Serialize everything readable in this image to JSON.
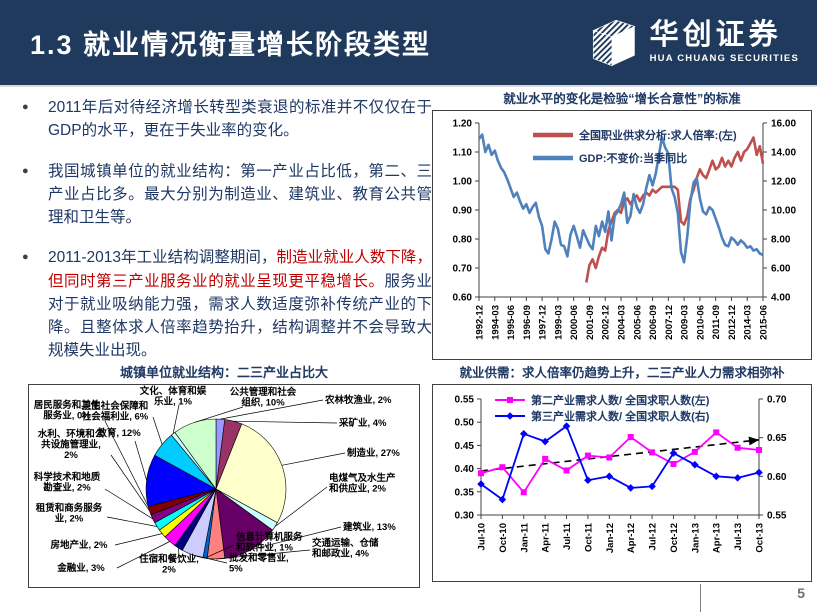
{
  "header": {
    "title": "1.3 就业情况衡量增长阶段类型",
    "logo_cn": "华创证券",
    "logo_en": "HUA CHUANG SECURITIES"
  },
  "bullets": {
    "items": [
      {
        "text": "2011年后对待经济增长转型类衰退的标准并不仅仅在于GDP的水平，更在于失业率的变化。"
      },
      {
        "text": "我国城镇单位的就业结构：第一产业占比低，第二、三产业占比多。最大分别为制造业、建筑业、教育公共管理和卫生等。"
      },
      {
        "pre": "2011-2013年工业结构调整期间，",
        "highlight": "制造业就业人数下降，但同时第三产业服务业的就业呈现更平稳增长。",
        "post": "服务业对于就业吸纳能力强，需求人数适度弥补传统产业的下降。且整体求人倍率趋势抬升，结构调整并不会导致大规模失业出现。"
      }
    ]
  },
  "footer": {
    "page_number": "5"
  },
  "chart_data": [
    {
      "type": "line",
      "title": "就业水平的变化是检验“增长合意性”的标准",
      "x_start": "1992-12",
      "x_freq": "quarterly",
      "x_tick_labels": [
        "1992-12",
        "1994-03",
        "1995-06",
        "1996-09",
        "1997-12",
        "1999-03",
        "2000-06",
        "2001-09",
        "2002-12",
        "2004-03",
        "2005-06",
        "2006-09",
        "2007-12",
        "2009-03",
        "2010-06",
        "2011-09",
        "2012-12",
        "2014-03",
        "2015-06"
      ],
      "x_tick_every": 5,
      "left_axis": {
        "min": 0.6,
        "max": 1.2,
        "step": 0.1,
        "decimals": 2
      },
      "right_axis": {
        "min": 4.0,
        "max": 16.0,
        "step": 2.0,
        "decimals": 2
      },
      "legend_position": "top-inside",
      "grid": false,
      "series": [
        {
          "name": "全国职业供求分析:求人倍率:(左)",
          "color": "#C0504D",
          "axis": "left",
          "values": [
            null,
            null,
            null,
            null,
            null,
            null,
            null,
            null,
            null,
            null,
            null,
            null,
            null,
            null,
            null,
            null,
            null,
            null,
            null,
            null,
            null,
            null,
            null,
            null,
            null,
            null,
            null,
            null,
            null,
            null,
            null,
            null,
            null,
            null,
            0.65,
            0.71,
            0.73,
            0.7,
            0.74,
            0.77,
            0.76,
            0.83,
            0.86,
            0.89,
            0.9,
            0.89,
            0.93,
            0.94,
            0.92,
            0.94,
            0.95,
            0.93,
            0.95,
            0.96,
            0.95,
            0.97,
            0.96,
            0.97,
            0.98,
            0.98,
            0.98,
            0.98,
            0.98,
            0.97,
            0.86,
            0.85,
            0.88,
            0.94,
            0.97,
            1.01,
            1.04,
            1.02,
            1.01,
            1.04,
            1.07,
            1.04,
            1.05,
            1.08,
            1.05,
            1.07,
            1.05,
            1.08,
            1.1,
            1.07,
            1.1,
            1.11,
            1.13,
            1.15,
            1.09,
            1.12,
            1.06
          ]
        },
        {
          "name": "GDP:不变价:当季同比",
          "color": "#4F81BD",
          "axis": "right",
          "values": [
            14.9,
            15.2,
            14.0,
            14.5,
            13.8,
            14.1,
            13.4,
            12.9,
            12.6,
            12.1,
            11.5,
            10.9,
            11.2,
            10.6,
            10.1,
            10.4,
            9.8,
            10.2,
            10.5,
            9.5,
            8.9,
            7.3,
            7.0,
            8.0,
            9.2,
            8.7,
            7.6,
            7.5,
            6.8,
            8.3,
            8.9,
            8.2,
            7.4,
            8.6,
            8.1,
            7.6,
            7.3,
            8.9,
            8.2,
            9.2,
            8.5,
            9.9,
            7.9,
            9.6,
            9.9,
            10.4,
            11.2,
            9.1,
            9.6,
            11.1,
            10.2,
            9.8,
            10.4,
            11.5,
            12.4,
            11.7,
            12.5,
            13.8,
            15.0,
            14.3,
            13.9,
            11.5,
            10.9,
            9.8,
            7.1,
            6.4,
            8.2,
            10.6,
            11.9,
            12.2,
            10.8,
            9.9,
            9.7,
            10.2,
            10.0,
            9.4,
            8.8,
            8.1,
            7.6,
            7.5,
            8.1,
            7.9,
            7.6,
            7.9,
            7.7,
            7.4,
            7.5,
            7.2,
            7.3,
            7.0,
            6.9
          ]
        }
      ]
    },
    {
      "type": "pie",
      "title": "城镇单位就业结构：二三产业占比大",
      "start_angle": "top",
      "direction": "clockwise",
      "slices": [
        {
          "name": "农林牧渔业",
          "pct": 2,
          "color": "#9999FF"
        },
        {
          "name": "采矿业",
          "pct": 4,
          "color": "#993366"
        },
        {
          "name": "制造业",
          "pct": 27,
          "color": "#FFFFCC"
        },
        {
          "name": "电煤气及水生产和供应业",
          "pct": 2,
          "color": "#CCFFFF"
        },
        {
          "name": "建筑业",
          "pct": 13,
          "color": "#660066"
        },
        {
          "name": "交通运输、仓储和邮政业",
          "pct": 4,
          "color": "#FF8080"
        },
        {
          "name": "信息计算机服务和软件业",
          "pct": 1,
          "color": "#0066CC"
        },
        {
          "name": "批发和零售业",
          "pct": 5,
          "color": "#CCCCFF"
        },
        {
          "name": "住宿和餐饮业",
          "pct": 2,
          "color": "#000080"
        },
        {
          "name": "金融业",
          "pct": 3,
          "color": "#FF00FF"
        },
        {
          "name": "房地产业",
          "pct": 2,
          "color": "#FFFF00"
        },
        {
          "name": "租赁和商务服务业",
          "pct": 2,
          "color": "#00FFFF"
        },
        {
          "name": "科学技术和地质勘查业",
          "pct": 2,
          "color": "#800080"
        },
        {
          "name": "水利、环境和公共设施管理业",
          "pct": 2,
          "color": "#800000"
        },
        {
          "name": "居民服务和其他服务业",
          "pct": 0,
          "color": "#008080"
        },
        {
          "name": "教育",
          "pct": 12,
          "color": "#0000FF"
        },
        {
          "name": "卫生社会保障和社会福利业",
          "pct": 6,
          "color": "#00CCFF"
        },
        {
          "name": "文化、体育和娱乐业",
          "pct": 1,
          "color": "#CCFFFF"
        },
        {
          "name": "公共管理和社会组织",
          "pct": 10,
          "color": "#CCFFCC"
        }
      ]
    },
    {
      "type": "line",
      "title": "就业供需：求人倍率仍趋势上升，二三产业人力需求相弥补",
      "x_tick_labels": [
        "Jul-10",
        "Oct-10",
        "Jan-11",
        "Apr-11",
        "Jul-11",
        "Oct-11",
        "Jan-12",
        "Apr-12",
        "Jul-12",
        "Oct-12",
        "Jan-13",
        "Apr-13",
        "Jul-13",
        "Oct-13"
      ],
      "x_tick_every": 1,
      "left_axis": {
        "min": 0.3,
        "max": 0.55,
        "step": 0.05,
        "decimals": 2
      },
      "right_axis": {
        "min": 0.55,
        "max": 0.7,
        "step": 0.05,
        "decimals": 2
      },
      "legend_position": "top-inside",
      "grid": false,
      "series": [
        {
          "name": "第二产业需求人数/ 全国求职人数(左)",
          "color": "#FF00FF",
          "axis": "left",
          "marker": "square",
          "values": [
            0.39,
            0.403,
            0.349,
            0.421,
            0.396,
            0.428,
            0.424,
            0.468,
            0.435,
            0.41,
            0.436,
            0.478,
            0.445,
            0.44
          ]
        },
        {
          "name": "第三产业需求人数/ 全国求职人数(右)",
          "color": "#0000FF",
          "axis": "right",
          "marker": "diamond",
          "values": [
            0.59,
            0.57,
            0.655,
            0.645,
            0.665,
            0.595,
            0.6,
            0.585,
            0.587,
            0.63,
            0.615,
            0.6,
            0.598,
            0.605
          ]
        }
      ],
      "trend": {
        "axis": "left",
        "start": 0.395,
        "end": 0.462,
        "style": "dashed",
        "color": "#000000"
      }
    }
  ]
}
